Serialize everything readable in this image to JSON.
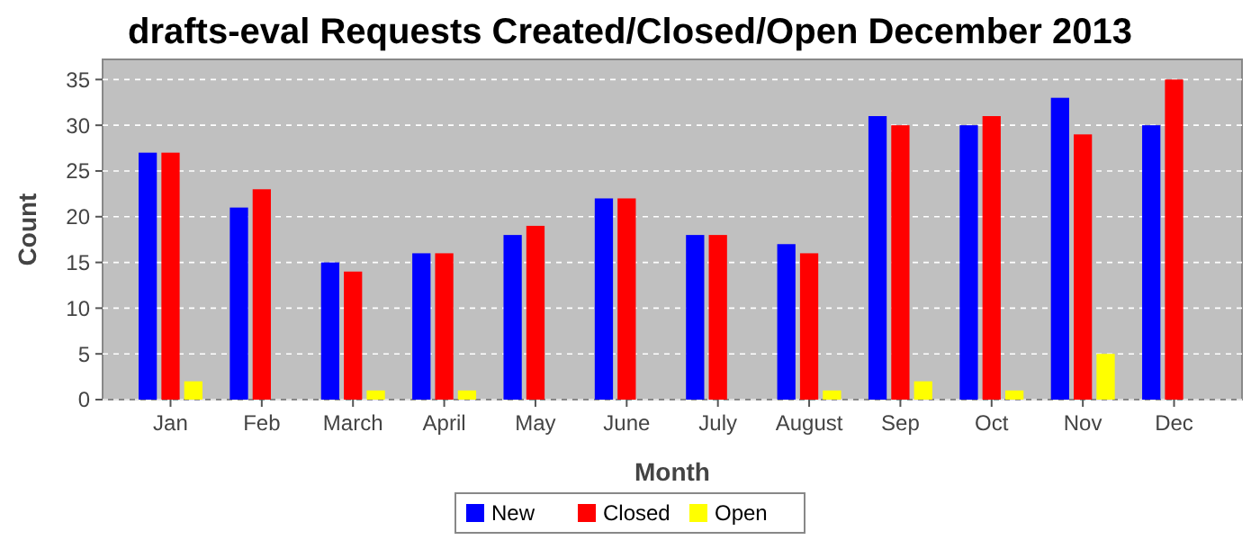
{
  "chart_data": {
    "type": "bar",
    "title": "drafts-eval Requests Created/Closed/Open December 2013",
    "xlabel": "Month",
    "ylabel": "Count",
    "categories": [
      "Jan",
      "Feb",
      "March",
      "April",
      "May",
      "June",
      "July",
      "August",
      "Sep",
      "Oct",
      "Nov",
      "Dec"
    ],
    "series": [
      {
        "name": "New",
        "color": "#0000ff",
        "values": [
          27,
          21,
          15,
          16,
          18,
          22,
          18,
          17,
          31,
          30,
          33,
          30
        ]
      },
      {
        "name": "Closed",
        "color": "#ff0000",
        "values": [
          27,
          23,
          14,
          16,
          19,
          22,
          18,
          16,
          30,
          31,
          29,
          35
        ]
      },
      {
        "name": "Open",
        "color": "#ffff00",
        "values": [
          2,
          0,
          1,
          1,
          0,
          0,
          0,
          1,
          2,
          1,
          5,
          0
        ]
      }
    ],
    "ylim": [
      0,
      37.2
    ],
    "yticks": [
      0,
      5,
      10,
      15,
      20,
      25,
      30,
      35
    ],
    "grid": "y",
    "legend": "bottom"
  }
}
